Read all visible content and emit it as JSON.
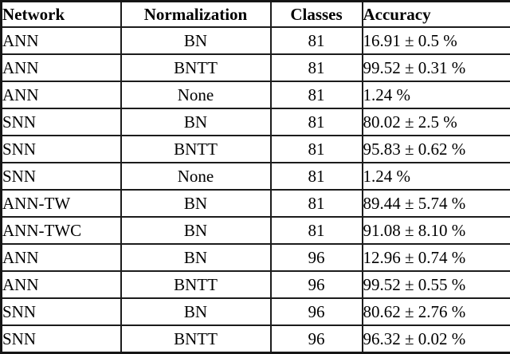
{
  "table": {
    "columns": [
      {
        "label": "Network",
        "align": "left"
      },
      {
        "label": "Normalization",
        "align": "center"
      },
      {
        "label": "Classes",
        "align": "center"
      },
      {
        "label": "Accuracy",
        "align": "accuracy-left"
      }
    ],
    "rows": [
      [
        "ANN",
        "BN",
        "81",
        "16.91 ± 0.5 %"
      ],
      [
        "ANN",
        "BNTT",
        "81",
        "99.52 ± 0.31 %"
      ],
      [
        "ANN",
        "None",
        "81",
        "1.24 %"
      ],
      [
        "SNN",
        "BN",
        "81",
        "80.02 ± 2.5 %"
      ],
      [
        "SNN",
        "BNTT",
        "81",
        "95.83 ± 0.62 %"
      ],
      [
        "SNN",
        "None",
        "81",
        "1.24 %"
      ],
      [
        "ANN-TW",
        "BN",
        "81",
        "89.44 ± 5.74 %"
      ],
      [
        "ANN-TWC",
        "BN",
        "81",
        "91.08 ± 8.10 %"
      ],
      [
        "ANN",
        "BN",
        "96",
        "12.96 ± 0.74 %"
      ],
      [
        "ANN",
        "BNTT",
        "96",
        "99.52 ± 0.55 %"
      ],
      [
        "SNN",
        "BN",
        "96",
        "80.62 ± 2.76 %"
      ],
      [
        "SNN",
        "BNTT",
        "96",
        "96.32 ± 0.02 %"
      ]
    ],
    "colors": {
      "border": "#1c1c1c",
      "background": "#ffffff",
      "text": "#000000"
    }
  }
}
